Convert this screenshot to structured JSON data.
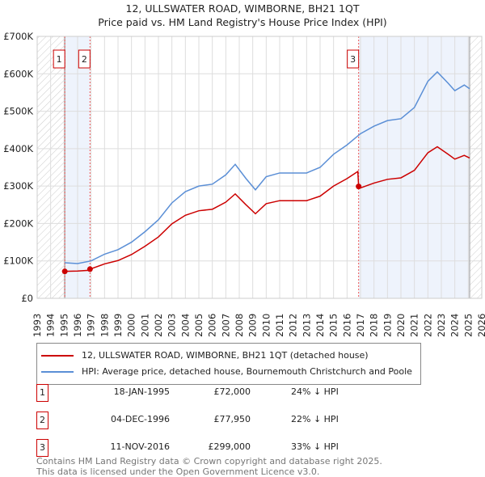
{
  "title": "12, ULLSWATER ROAD, WIMBORNE, BH21 1QT",
  "subtitle": "Price paid vs. HM Land Registry's House Price Index (HPI)",
  "chart_data": {
    "type": "line",
    "title": "12, ULLSWATER ROAD, WIMBORNE, BH21 1QT",
    "subtitle": "Price paid vs. HM Land Registry's House Price Index (HPI)",
    "xlim": [
      1993,
      2026
    ],
    "ylim": [
      0,
      700000
    ],
    "yticks": [
      {
        "v": 0,
        "label": "£0"
      },
      {
        "v": 100000,
        "label": "£100K"
      },
      {
        "v": 200000,
        "label": "£200K"
      },
      {
        "v": 300000,
        "label": "£300K"
      },
      {
        "v": 400000,
        "label": "£400K"
      },
      {
        "v": 500000,
        "label": "£500K"
      },
      {
        "v": 600000,
        "label": "£600K"
      },
      {
        "v": 700000,
        "label": "£700K"
      }
    ],
    "xticks": [
      "1993",
      "1994",
      "1995",
      "1996",
      "1997",
      "1998",
      "1999",
      "2000",
      "2001",
      "2002",
      "2003",
      "2004",
      "2005",
      "2006",
      "2007",
      "2008",
      "2009",
      "2010",
      "2011",
      "2012",
      "2013",
      "2014",
      "2015",
      "2016",
      "2017",
      "2018",
      "2019",
      "2020",
      "2021",
      "2022",
      "2023",
      "2024",
      "2025",
      "2026"
    ],
    "grid": true,
    "hatched_ranges": [
      [
        1993,
        1995.05
      ],
      [
        2025.1,
        2026
      ]
    ],
    "shaded_ranges": [
      [
        1995.05,
        1996.92
      ],
      [
        2016.86,
        2025.1
      ]
    ],
    "series": [
      {
        "name": "12, ULLSWATER ROAD, WIMBORNE, BH21 1QT (detached house)",
        "color": "#cc0000",
        "points": [
          [
            1995.05,
            72000
          ],
          [
            1996,
            73000
          ],
          [
            1996.9,
            75000
          ],
          [
            1996.92,
            77950
          ],
          [
            1998,
            92000
          ],
          [
            1999,
            101000
          ],
          [
            2000,
            117000
          ],
          [
            2001,
            139000
          ],
          [
            2002,
            164000
          ],
          [
            2003,
            199000
          ],
          [
            2004,
            222000
          ],
          [
            2005,
            234000
          ],
          [
            2006,
            238000
          ],
          [
            2007,
            257000
          ],
          [
            2007.7,
            279000
          ],
          [
            2008.5,
            250000
          ],
          [
            2009.2,
            226000
          ],
          [
            2010,
            253000
          ],
          [
            2011,
            261000
          ],
          [
            2012,
            261000
          ],
          [
            2013,
            261000
          ],
          [
            2014,
            273000
          ],
          [
            2015,
            300000
          ],
          [
            2016,
            320000
          ],
          [
            2016.8,
            339000
          ],
          [
            2016.86,
            299000
          ],
          [
            2017,
            295000
          ],
          [
            2018,
            308000
          ],
          [
            2019,
            318000
          ],
          [
            2020,
            322000
          ],
          [
            2021,
            342000
          ],
          [
            2022,
            389000
          ],
          [
            2022.7,
            405000
          ],
          [
            2023.5,
            385000
          ],
          [
            2024,
            372000
          ],
          [
            2024.7,
            382000
          ],
          [
            2025.1,
            375000
          ]
        ]
      },
      {
        "name": "HPI: Average price, detached house, Bournemouth Christchurch and Poole",
        "color": "#5b8fd6",
        "points": [
          [
            1995.05,
            95000
          ],
          [
            1996,
            93000
          ],
          [
            1997,
            100000
          ],
          [
            1998,
            118000
          ],
          [
            1999,
            130000
          ],
          [
            2000,
            150000
          ],
          [
            2001,
            178000
          ],
          [
            2002,
            210000
          ],
          [
            2003,
            255000
          ],
          [
            2004,
            285000
          ],
          [
            2005,
            300000
          ],
          [
            2006,
            305000
          ],
          [
            2007,
            330000
          ],
          [
            2007.7,
            358000
          ],
          [
            2008.5,
            320000
          ],
          [
            2009.2,
            290000
          ],
          [
            2010,
            325000
          ],
          [
            2011,
            335000
          ],
          [
            2012,
            335000
          ],
          [
            2013,
            335000
          ],
          [
            2014,
            350000
          ],
          [
            2015,
            385000
          ],
          [
            2016,
            410000
          ],
          [
            2017,
            440000
          ],
          [
            2018,
            460000
          ],
          [
            2019,
            475000
          ],
          [
            2020,
            480000
          ],
          [
            2021,
            510000
          ],
          [
            2022,
            580000
          ],
          [
            2022.7,
            605000
          ],
          [
            2023.5,
            575000
          ],
          [
            2024,
            555000
          ],
          [
            2024.7,
            570000
          ],
          [
            2025.1,
            560000
          ]
        ]
      }
    ],
    "sales": [
      {
        "n": "1",
        "x": 1995.05,
        "y": 72000
      },
      {
        "n": "2",
        "x": 1996.92,
        "y": 77950
      },
      {
        "n": "3",
        "x": 2016.86,
        "y": 299000
      }
    ],
    "legend_position": "bottom"
  },
  "legend": [
    "12, ULLSWATER ROAD, WIMBORNE, BH21 1QT (detached house)",
    "HPI: Average price, detached house, Bournemouth Christchurch and Poole"
  ],
  "transactions": [
    {
      "n": "1",
      "date": "18-JAN-1995",
      "price": "£72,000",
      "pct": "24% ↓ HPI"
    },
    {
      "n": "2",
      "date": "04-DEC-1996",
      "price": "£77,950",
      "pct": "22% ↓ HPI"
    },
    {
      "n": "3",
      "date": "11-NOV-2016",
      "price": "£299,000",
      "pct": "33% ↓ HPI"
    }
  ],
  "footer": [
    "Contains HM Land Registry data © Crown copyright and database right 2025.",
    "This data is licensed under the Open Government Licence v3.0."
  ]
}
